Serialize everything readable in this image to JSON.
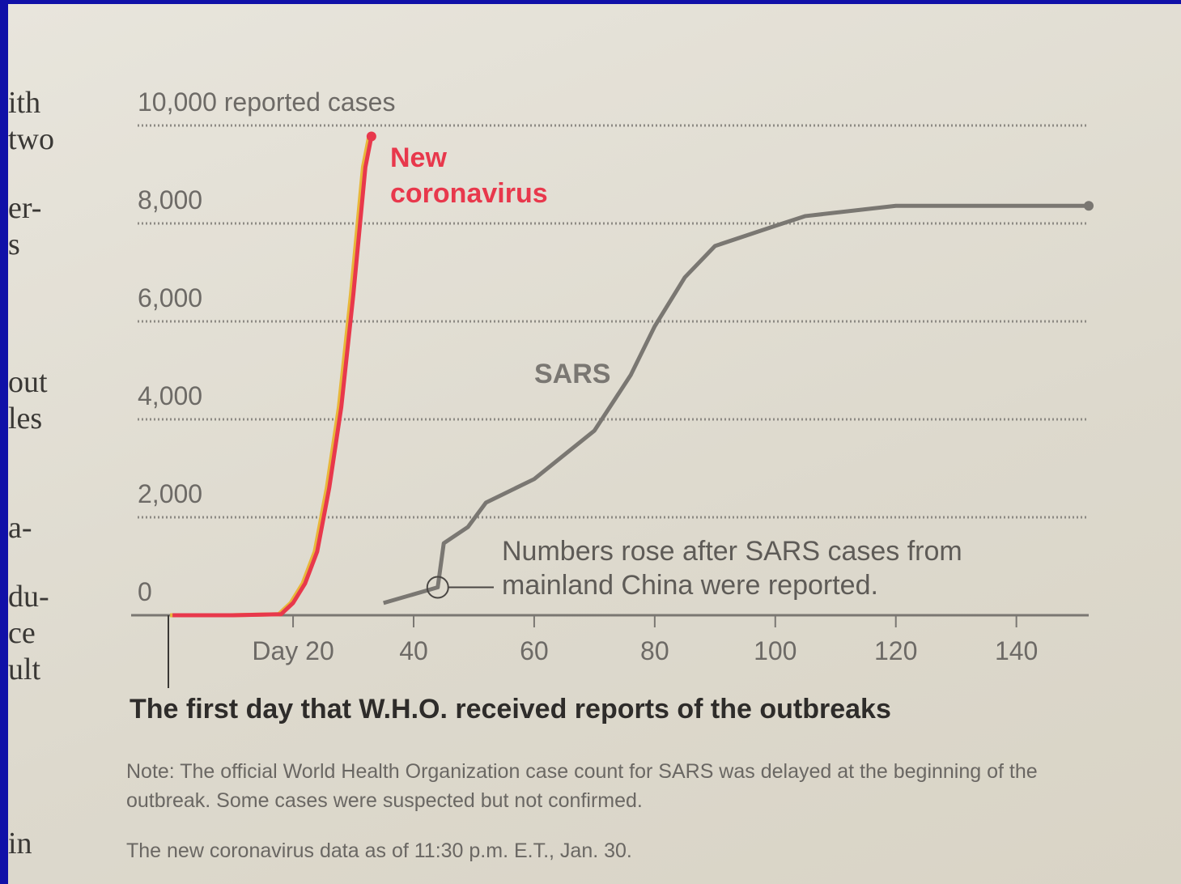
{
  "chart_data": {
    "type": "line",
    "series": [
      {
        "name": "New coronavirus",
        "color": "#e8384c",
        "x": [
          0,
          10,
          18,
          20,
          22,
          24,
          26,
          28,
          30,
          32,
          33
        ],
        "values": [
          0,
          0,
          20,
          250,
          650,
          1300,
          2600,
          4250,
          6550,
          9150,
          9776
        ]
      },
      {
        "name": "SARS",
        "color": "#7a7772",
        "x": [
          35,
          44,
          45,
          49,
          52,
          60,
          70,
          76,
          80,
          85,
          90,
          100,
          105,
          120,
          152
        ],
        "values": [
          250,
          570,
          1470,
          1800,
          2300,
          2780,
          3770,
          4900,
          5900,
          6900,
          7540,
          7950,
          8150,
          8360,
          8360
        ]
      }
    ],
    "xlim": [
      -7,
      152
    ],
    "xticks": [
      {
        "value": 20,
        "label": "Day 20"
      },
      40,
      60,
      80,
      100,
      120,
      140
    ],
    "ylim": [
      0,
      10000
    ],
    "yticks": [
      0,
      {
        "value": 2000,
        "label": "2,000"
      },
      {
        "value": 4000,
        "label": "4,000"
      },
      {
        "value": 6000,
        "label": "6,000"
      },
      {
        "value": 8000,
        "label": "8,000"
      },
      {
        "value": 10000,
        "label": "10,000 reported cases"
      }
    ],
    "grid": true,
    "xlabel": "The first day that W.H.O. received reports of the outbreaks",
    "annotation": {
      "text": "Numbers rose after SARS cases from mainland China were reported.",
      "x": 44,
      "y": 570
    },
    "notes": [
      "Note: The official World Health Organization case count for SARS was delayed at the beginning of the outbreak. Some cases were suspected but not confirmed.",
      "The new coronavirus data as of 11:30 p.m. E.T., Jan. 30."
    ],
    "margin_text": [
      "ith",
      "two",
      "er-",
      "s",
      "out",
      "les",
      "a-",
      "du-",
      "ce",
      "ult",
      "in"
    ]
  }
}
